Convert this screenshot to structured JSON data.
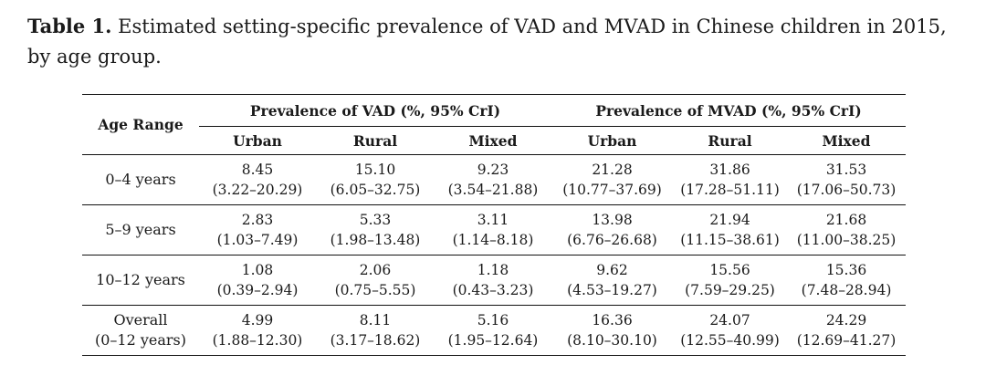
{
  "caption": {
    "label": "Table 1.",
    "text": "Estimated setting-specific prevalence of VAD and MVAD in Chinese children in 2015, by age group."
  },
  "table": {
    "age_header": "Age Range",
    "groups": [
      {
        "label": "Prevalence of VAD (%, 95% CrI)",
        "subs": [
          "Urban",
          "Rural",
          "Mixed"
        ]
      },
      {
        "label": "Prevalence of MVAD (%, 95% CrI)",
        "subs": [
          "Urban",
          "Rural",
          "Mixed"
        ]
      }
    ],
    "rows": [
      {
        "age": "0–4 years",
        "age2": "",
        "cells": [
          {
            "v": "8.45",
            "ci": "(3.22–20.29)"
          },
          {
            "v": "15.10",
            "ci": "(6.05–32.75)"
          },
          {
            "v": "9.23",
            "ci": "(3.54–21.88)"
          },
          {
            "v": "21.28",
            "ci": "(10.77–37.69)"
          },
          {
            "v": "31.86",
            "ci": "(17.28–51.11)"
          },
          {
            "v": "31.53",
            "ci": "(17.06–50.73)"
          }
        ]
      },
      {
        "age": "5–9 years",
        "age2": "",
        "cells": [
          {
            "v": "2.83",
            "ci": "(1.03–7.49)"
          },
          {
            "v": "5.33",
            "ci": "(1.98–13.48)"
          },
          {
            "v": "3.11",
            "ci": "(1.14–8.18)"
          },
          {
            "v": "13.98",
            "ci": "(6.76–26.68)"
          },
          {
            "v": "21.94",
            "ci": "(11.15–38.61)"
          },
          {
            "v": "21.68",
            "ci": "(11.00–38.25)"
          }
        ]
      },
      {
        "age": "10–12 years",
        "age2": "",
        "cells": [
          {
            "v": "1.08",
            "ci": "(0.39–2.94)"
          },
          {
            "v": "2.06",
            "ci": "(0.75–5.55)"
          },
          {
            "v": "1.18",
            "ci": "(0.43–3.23)"
          },
          {
            "v": "9.62",
            "ci": "(4.53–19.27)"
          },
          {
            "v": "15.56",
            "ci": "(7.59–29.25)"
          },
          {
            "v": "15.36",
            "ci": "(7.48–28.94)"
          }
        ]
      },
      {
        "age": "Overall",
        "age2": "(0–12 years)",
        "cells": [
          {
            "v": "4.99",
            "ci": "(1.88–12.30)"
          },
          {
            "v": "8.11",
            "ci": "(3.17–18.62)"
          },
          {
            "v": "5.16",
            "ci": "(1.95–12.64)"
          },
          {
            "v": "16.36",
            "ci": "(8.10–30.10)"
          },
          {
            "v": "24.07",
            "ci": "(12.55–40.99)"
          },
          {
            "v": "24.29",
            "ci": "(12.69–41.27)"
          }
        ]
      }
    ]
  }
}
